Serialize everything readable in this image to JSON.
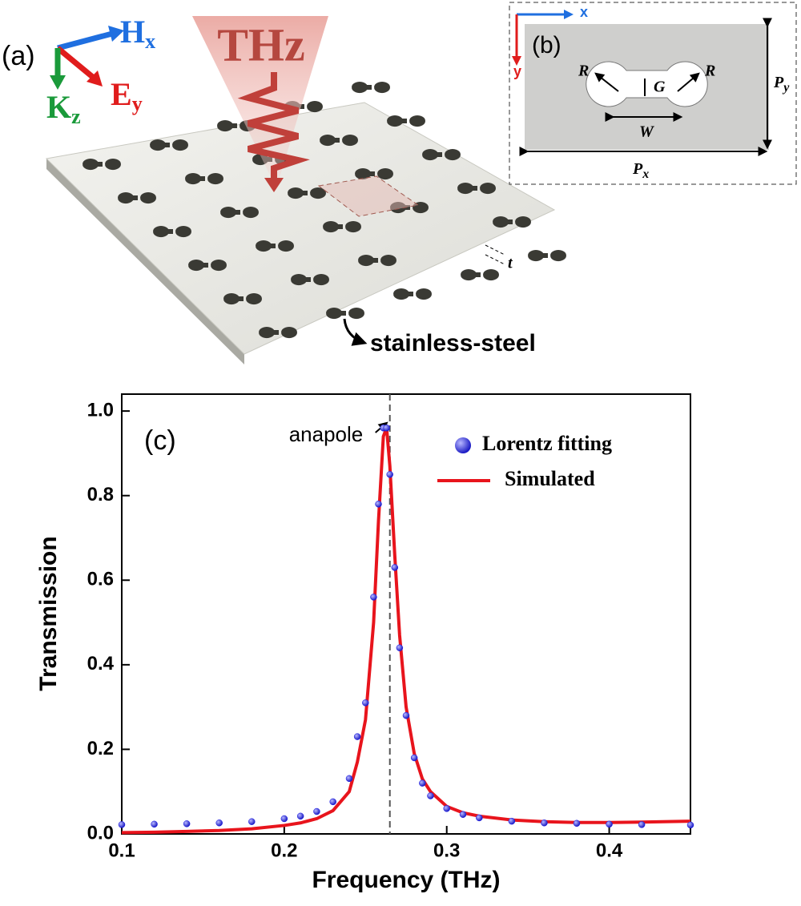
{
  "diagram_a": {
    "label": "(a)",
    "h": "H",
    "h_sub": "x",
    "e": "E",
    "e_sub": "y",
    "k": "K",
    "k_sub": "z",
    "beam": "THz",
    "thickness": "t",
    "material": "stainless-steel"
  },
  "diagram_b": {
    "label": "(b)",
    "x_axis": "x",
    "y_axis": "y",
    "radius_left": "R",
    "radius_right": "R",
    "gap": "G",
    "width": "W",
    "period_y": "P",
    "period_y_sub": "y",
    "period_x": "P",
    "period_x_sub": "x"
  },
  "chart_data": {
    "type": "line",
    "panel_label": "(c)",
    "xlabel": "Frequency (THz)",
    "ylabel": "Transmission",
    "x": [
      0.1,
      0.12,
      0.14,
      0.16,
      0.18,
      0.2,
      0.21,
      0.22,
      0.23,
      0.24,
      0.245,
      0.25,
      0.255,
      0.258,
      0.261,
      0.263,
      0.265,
      0.268,
      0.271,
      0.275,
      0.28,
      0.285,
      0.29,
      0.3,
      0.31,
      0.32,
      0.34,
      0.36,
      0.38,
      0.4,
      0.42,
      0.45
    ],
    "series": [
      {
        "name": "Lorentz fitting",
        "color": "#1a1ae6",
        "marker": true,
        "values": [
          0.022,
          0.023,
          0.024,
          0.026,
          0.029,
          0.036,
          0.042,
          0.053,
          0.076,
          0.131,
          0.23,
          0.31,
          0.56,
          0.78,
          0.96,
          0.96,
          0.85,
          0.63,
          0.44,
          0.28,
          0.18,
          0.12,
          0.09,
          0.06,
          0.046,
          0.038,
          0.03,
          0.026,
          0.025,
          0.023,
          0.022,
          0.021
        ]
      },
      {
        "name": "Simulated",
        "color": "#e8141c",
        "marker": false,
        "values": [
          0.003,
          0.004,
          0.006,
          0.008,
          0.012,
          0.02,
          0.026,
          0.036,
          0.055,
          0.1,
          0.17,
          0.27,
          0.5,
          0.74,
          0.94,
          0.96,
          0.87,
          0.66,
          0.47,
          0.3,
          0.19,
          0.13,
          0.1,
          0.065,
          0.05,
          0.042,
          0.033,
          0.029,
          0.027,
          0.027,
          0.028,
          0.03
        ]
      }
    ],
    "annotation": {
      "text": "anapole",
      "x": 0.265
    },
    "xlim": [
      0.1,
      0.45
    ],
    "xticks": [
      0.1,
      0.2,
      0.3,
      0.4
    ],
    "ylim": [
      0,
      1.04
    ],
    "yticks": [
      {
        "value": 0,
        "label": "0.0"
      },
      0.2,
      0.4,
      0.6,
      0.8,
      {
        "value": 1,
        "label": "1.0"
      }
    ],
    "legend": "upper right"
  }
}
